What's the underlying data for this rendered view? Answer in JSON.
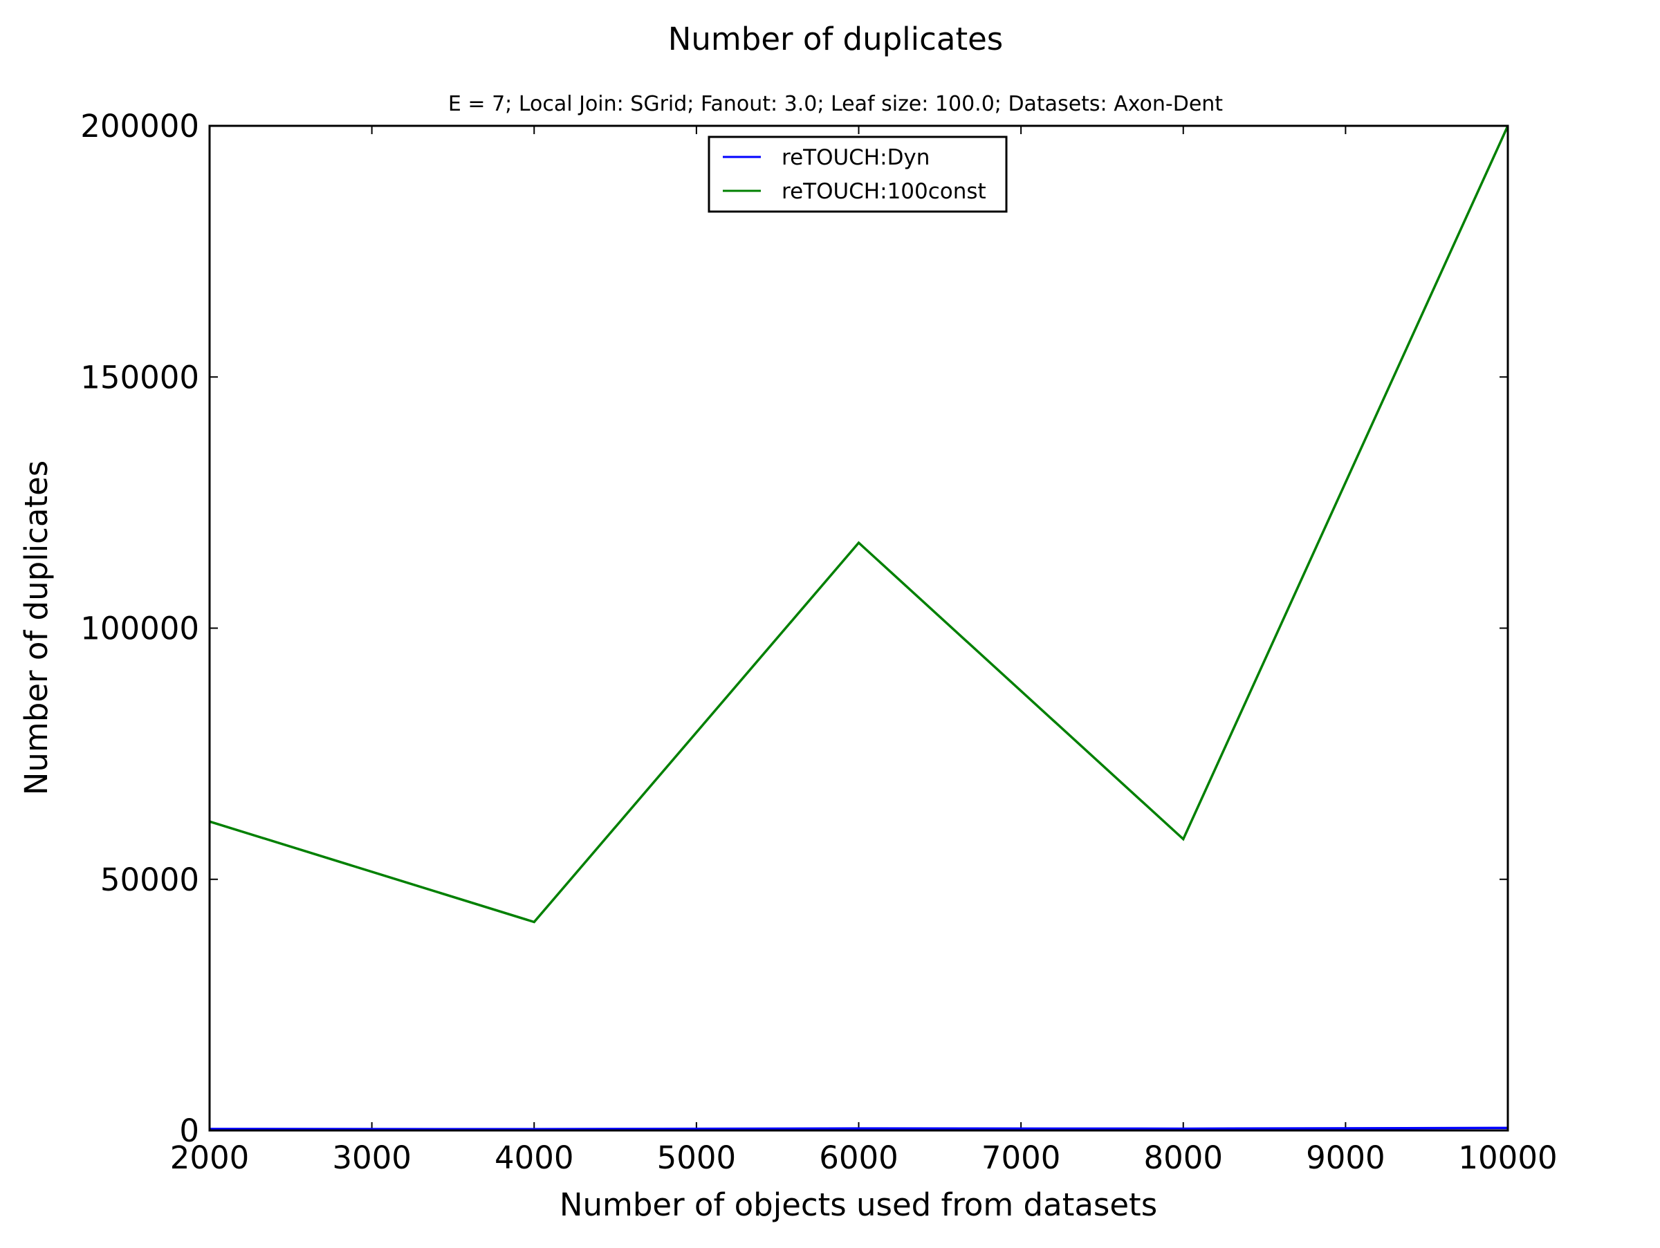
{
  "chart_data": {
    "type": "line",
    "title": "Number of duplicates",
    "subtitle": "E = 7; Local Join: SGrid; Fanout: 3.0; Leaf size: 100.0; Datasets: Axon-Dent",
    "xlabel": "Number of objects used from datasets",
    "ylabel": "Number of duplicates",
    "xlim": [
      2000,
      10000
    ],
    "ylim": [
      0,
      200000
    ],
    "xticks": [
      2000,
      3000,
      4000,
      5000,
      6000,
      7000,
      8000,
      9000,
      10000
    ],
    "yticks": [
      0,
      50000,
      100000,
      150000,
      200000
    ],
    "grid": false,
    "legend_position": "top-center",
    "series": [
      {
        "name": "reTOUCH:Dyn",
        "color": "#0000ff",
        "x": [
          2000,
          4000,
          6000,
          8000,
          10000
        ],
        "y": [
          300,
          250,
          400,
          350,
          500
        ]
      },
      {
        "name": "reTOUCH:100const",
        "color": "#008000",
        "x": [
          2000,
          4000,
          6000,
          8000,
          10000
        ],
        "y": [
          61500,
          41500,
          117000,
          58000,
          200000
        ]
      }
    ]
  }
}
